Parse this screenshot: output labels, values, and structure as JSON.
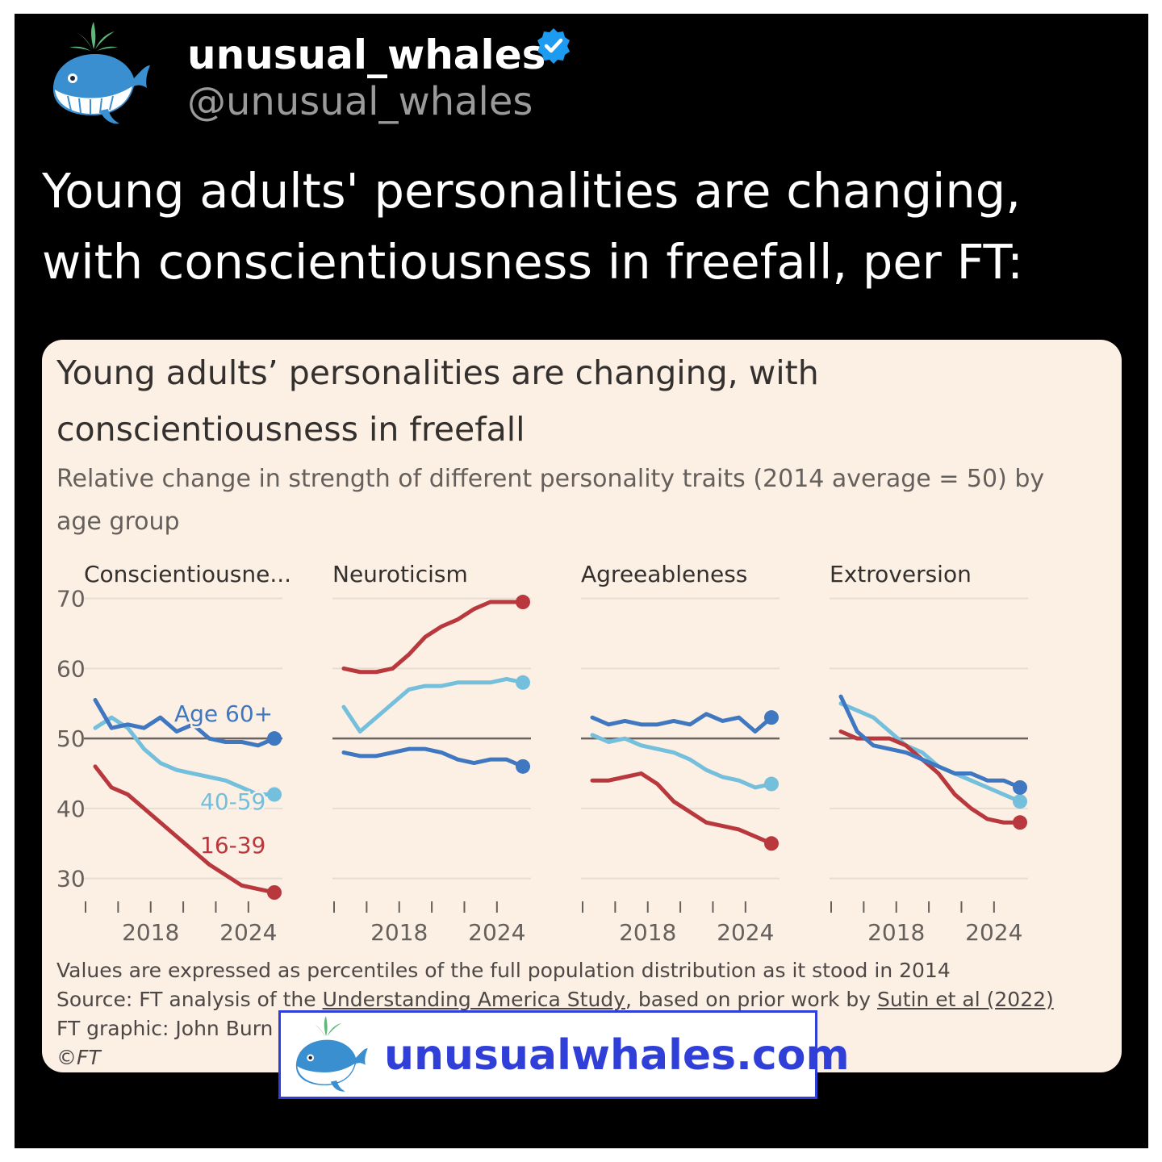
{
  "post": {
    "display_name": "unusual_whales",
    "handle": "@unusual_whales",
    "text": "Young adults' personalities are changing, with conscientiousness in freefall, per FT:",
    "avatar_icon": "whale-icon",
    "verified_icon": "verified-badge-icon"
  },
  "card": {
    "title": "Young adults’ personalities are changing, with conscientiousness in freefall",
    "subtitle": "Relative change in strength of different personality traits (2014 average = 50) by age group",
    "note": "Values are expressed as percentiles of the full population distribution as it stood in 2014",
    "source_prefix": "Source: FT analysis of the ",
    "source_link_1": "Understanding America Study",
    "source_middle": ", based on prior work by ",
    "source_link_2": "Sutin et al (2022)",
    "graphic_credit": "FT graphic: John Burn",
    "copyright": "©FT"
  },
  "watermark": {
    "text": "unusualwhales.com",
    "icon": "whale-icon",
    "color": "#2f3fd8"
  },
  "colors": {
    "age_16_39": "#b8383d",
    "age_40_59": "#74bfdc",
    "age_60_plus": "#3f77c1",
    "baseline": "#6b6360",
    "grid": "#e6ddd3",
    "card_bg": "#fcefe4"
  },
  "chart_data": [
    {
      "type": "line",
      "title": "Conscientiousne...",
      "x": [
        2014,
        2015,
        2016,
        2017,
        2018,
        2019,
        2020,
        2021,
        2022,
        2023,
        2024,
        2025
      ],
      "xticks": [
        2018,
        2024
      ],
      "yticks": [
        30,
        40,
        50,
        60,
        70
      ],
      "ylim": [
        28,
        71
      ],
      "baseline": 50,
      "series": [
        {
          "name": "16-39",
          "values": [
            46,
            43,
            42,
            40,
            38,
            36,
            34,
            32,
            30.5,
            29,
            28.5,
            28
          ]
        },
        {
          "name": "40-59",
          "values": [
            51.5,
            53,
            51.5,
            48.5,
            46.5,
            45.5,
            45,
            44.5,
            44,
            43,
            42,
            42
          ]
        },
        {
          "name": "Age 60+",
          "values": [
            55.5,
            51.5,
            52,
            51.5,
            53,
            51,
            52,
            50,
            49.5,
            49.5,
            49,
            50
          ]
        }
      ]
    },
    {
      "type": "line",
      "title": "Neuroticism",
      "x": [
        2014,
        2015,
        2016,
        2017,
        2018,
        2019,
        2020,
        2021,
        2022,
        2023,
        2024,
        2025
      ],
      "xticks": [
        2018,
        2024
      ],
      "yticks": [
        30,
        40,
        50,
        60,
        70
      ],
      "ylim": [
        28,
        71
      ],
      "baseline": 50,
      "series": [
        {
          "name": "16-39",
          "values": [
            60,
            59.5,
            59.5,
            60,
            62,
            64.5,
            66,
            67,
            68.5,
            69.5,
            69.5,
            69.5
          ]
        },
        {
          "name": "40-59",
          "values": [
            54.5,
            51,
            53,
            55,
            57,
            57.5,
            57.5,
            58,
            58,
            58,
            58.5,
            58
          ]
        },
        {
          "name": "Age 60+",
          "values": [
            48,
            47.5,
            47.5,
            48,
            48.5,
            48.5,
            48,
            47,
            46.5,
            47,
            47,
            46
          ]
        }
      ]
    },
    {
      "type": "line",
      "title": "Agreeableness",
      "x": [
        2014,
        2015,
        2016,
        2017,
        2018,
        2019,
        2020,
        2021,
        2022,
        2023,
        2024,
        2025
      ],
      "xticks": [
        2018,
        2024
      ],
      "yticks": [
        30,
        40,
        50,
        60,
        70
      ],
      "ylim": [
        28,
        71
      ],
      "baseline": 50,
      "series": [
        {
          "name": "16-39",
          "values": [
            44,
            44,
            44.5,
            45,
            43.5,
            41,
            39.5,
            38,
            37.5,
            37,
            36,
            35
          ]
        },
        {
          "name": "40-59",
          "values": [
            50.5,
            49.5,
            50,
            49,
            48.5,
            48,
            47,
            45.5,
            44.5,
            44,
            43,
            43.5
          ]
        },
        {
          "name": "Age 60+",
          "values": [
            53,
            52,
            52.5,
            52,
            52,
            52.5,
            52,
            53.5,
            52.5,
            53,
            51,
            53
          ]
        }
      ]
    },
    {
      "type": "line",
      "title": "Extroversion",
      "x": [
        2014,
        2015,
        2016,
        2017,
        2018,
        2019,
        2020,
        2021,
        2022,
        2023,
        2024,
        2025
      ],
      "xticks": [
        2018,
        2024
      ],
      "yticks": [
        30,
        40,
        50,
        60,
        70
      ],
      "ylim": [
        28,
        71
      ],
      "baseline": 50,
      "series": [
        {
          "name": "16-39",
          "values": [
            51,
            50,
            50,
            50,
            49,
            47,
            45,
            42,
            40,
            38.5,
            38,
            38
          ]
        },
        {
          "name": "40-59",
          "values": [
            55,
            54,
            53,
            51,
            49,
            48,
            46,
            45,
            44,
            43,
            42,
            41
          ]
        },
        {
          "name": "Age 60+",
          "values": [
            56,
            51,
            49,
            48.5,
            48,
            47,
            46,
            45,
            45,
            44,
            44,
            43
          ]
        }
      ]
    }
  ]
}
